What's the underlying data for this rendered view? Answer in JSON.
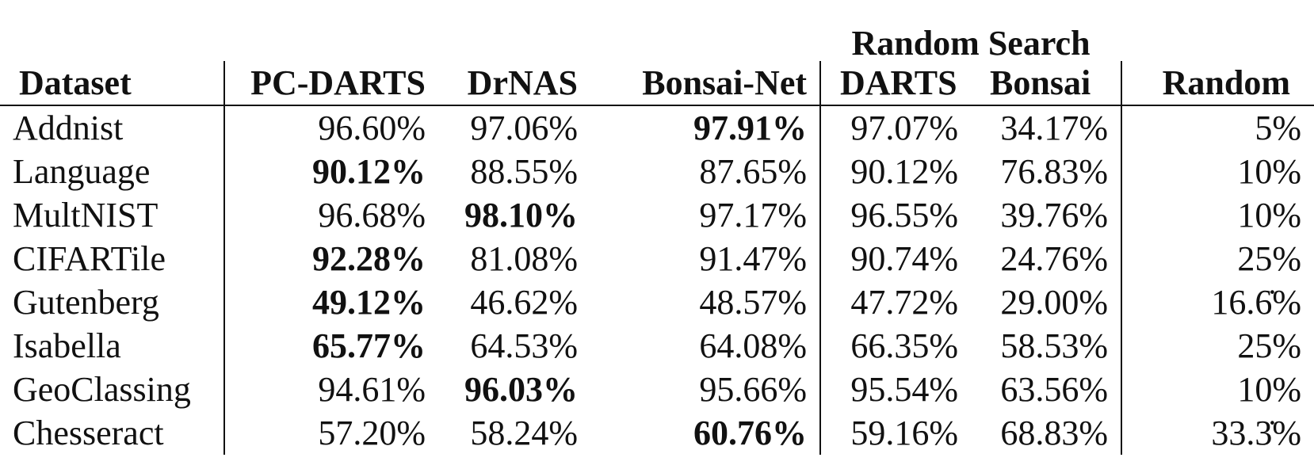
{
  "table": {
    "group_header": "Random Search",
    "columns": [
      "Dataset",
      "PC-DARTS",
      "DrNAS",
      "Bonsai-Net",
      "DARTS",
      "Bonsai",
      "Random"
    ],
    "rows": [
      {
        "dataset": "Addnist",
        "pc_darts": "96.60%",
        "drnas": "97.06%",
        "bonsai_net": "97.91%",
        "darts": "97.07%",
        "bonsai": "34.17%",
        "random": "5%",
        "best": "bonsai_net"
      },
      {
        "dataset": "Language",
        "pc_darts": "90.12%",
        "drnas": "88.55%",
        "bonsai_net": "87.65%",
        "darts": "90.12%",
        "bonsai": "76.83%",
        "random": "10%",
        "best": "pc_darts"
      },
      {
        "dataset": "MultNIST",
        "pc_darts": "96.68%",
        "drnas": "98.10%",
        "bonsai_net": "97.17%",
        "darts": "96.55%",
        "bonsai": "39.76%",
        "random": "10%",
        "best": "drnas"
      },
      {
        "dataset": "CIFARTile",
        "pc_darts": "92.28%",
        "drnas": "81.08%",
        "bonsai_net": "91.47%",
        "darts": "90.74%",
        "bonsai": "24.76%",
        "random": "25%",
        "best": "pc_darts"
      },
      {
        "dataset": "Gutenberg",
        "pc_darts": "49.12%",
        "drnas": "46.62%",
        "bonsai_net": "48.57%",
        "darts": "47.72%",
        "bonsai": "29.00%",
        "random": "16.6̇%",
        "best": "pc_darts"
      },
      {
        "dataset": "Isabella",
        "pc_darts": "65.77%",
        "drnas": "64.53%",
        "bonsai_net": "64.08%",
        "darts": "66.35%",
        "bonsai": "58.53%",
        "random": "25%",
        "best": "pc_darts"
      },
      {
        "dataset": "GeoClassing",
        "pc_darts": "94.61%",
        "drnas": "96.03%",
        "bonsai_net": "95.66%",
        "darts": "95.54%",
        "bonsai": "63.56%",
        "random": "10%",
        "best": "drnas"
      },
      {
        "dataset": "Chesseract",
        "pc_darts": "57.20%",
        "drnas": "58.24%",
        "bonsai_net": "60.76%",
        "darts": "59.16%",
        "bonsai": "68.83%",
        "random": "33.3̇%",
        "best": "bonsai_net"
      }
    ]
  }
}
